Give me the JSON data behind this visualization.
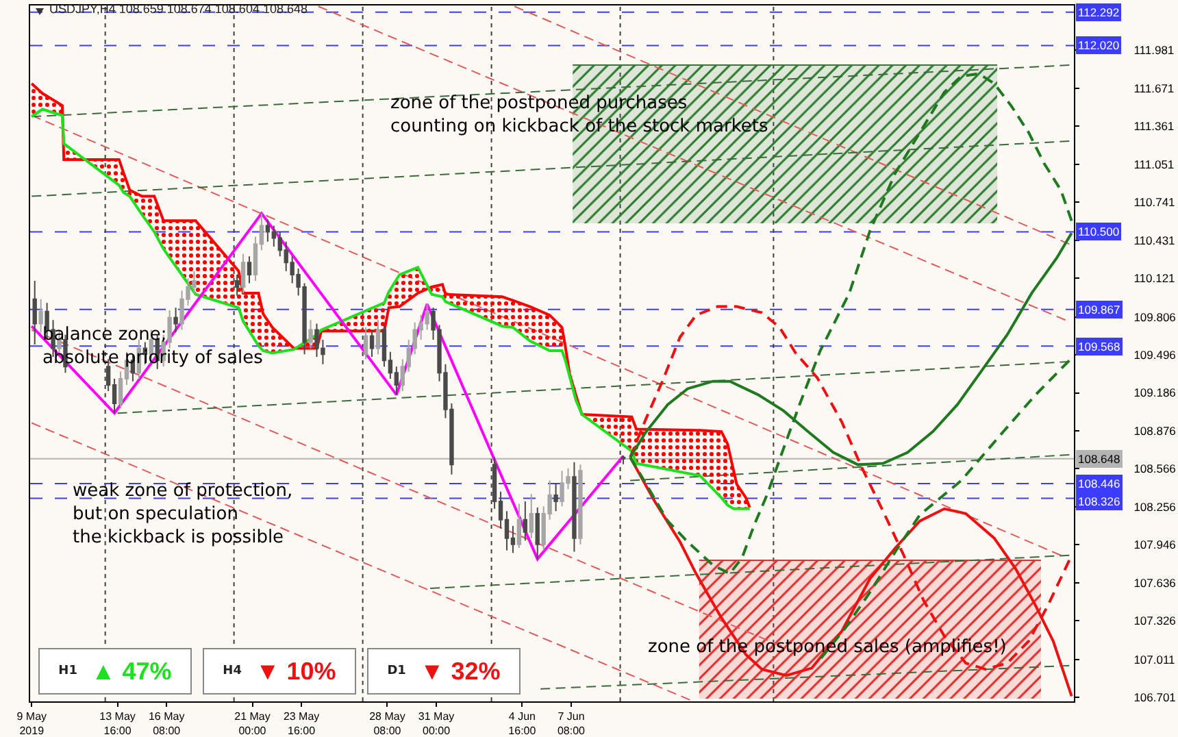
{
  "chart_data": [
    {
      "type": "candlestick",
      "title": "USDJPY,H4 108.659 108.674 108.604 108.648",
      "x": [
        "2019-05-09T04:00",
        "2019-05-09T12:00",
        "2019-05-09T20:00",
        "2019-05-10T04:00",
        "2019-05-10T12:00",
        "2019-05-10T20:00",
        "2019-05-13T04:00",
        "2019-05-13T12:00",
        "2019-05-13T20:00",
        "2019-05-14T04:00",
        "2019-05-14T12:00",
        "2019-05-14T20:00",
        "2019-05-15T04:00",
        "2019-05-15T12:00",
        "2019-05-15T20:00",
        "2019-05-16T04:00",
        "2019-05-16T12:00",
        "2019-05-16T20:00",
        "2019-05-17T04:00",
        "2019-05-17T12:00",
        "2019-05-17T20:00",
        "2019-05-20T04:00",
        "2019-05-20T12:00",
        "2019-05-20T20:00",
        "2019-05-21T04:00",
        "2019-05-21T12:00",
        "2019-05-21T20:00",
        "2019-05-22T04:00",
        "2019-05-22T12:00",
        "2019-05-22T20:00",
        "2019-05-23T04:00",
        "2019-05-23T12:00",
        "2019-05-23T20:00",
        "2019-05-24T04:00",
        "2019-05-24T12:00",
        "2019-05-24T20:00",
        "2019-05-27T04:00",
        "2019-05-27T12:00",
        "2019-05-27T20:00",
        "2019-05-28T04:00",
        "2019-05-28T12:00",
        "2019-05-28T20:00",
        "2019-05-29T04:00",
        "2019-05-29T12:00",
        "2019-05-29T20:00",
        "2019-05-30T04:00",
        "2019-05-30T12:00",
        "2019-05-30T20:00",
        "2019-05-31T04:00",
        "2019-05-31T12:00",
        "2019-05-31T20:00",
        "2019-06-03T04:00",
        "2019-06-03T12:00",
        "2019-06-03T20:00",
        "2019-06-04T04:00",
        "2019-06-04T12:00",
        "2019-06-04T20:00",
        "2019-06-05T04:00",
        "2019-06-05T12:00",
        "2019-06-05T20:00",
        "2019-06-06T04:00",
        "2019-06-06T12:00",
        "2019-06-06T20:00",
        "2019-06-07T04:00",
        "2019-06-07T12:00",
        "2019-06-07T20:00",
        "2019-06-10T04:00"
      ],
      "ohlc": [
        [
          109.95,
          110.1,
          109.58,
          109.75
        ],
        [
          109.75,
          109.95,
          109.68,
          109.85
        ],
        [
          109.85,
          109.92,
          109.62,
          109.7
        ],
        [
          109.7,
          109.78,
          109.48,
          109.55
        ],
        [
          109.55,
          109.7,
          109.5,
          109.62
        ],
        [
          109.62,
          109.66,
          109.35,
          109.4
        ],
        [
          109.4,
          109.46,
          109.2,
          109.25
        ],
        [
          109.25,
          109.3,
          109.02,
          109.1
        ],
        [
          109.1,
          109.36,
          109.06,
          109.3
        ],
        [
          109.3,
          109.52,
          109.25,
          109.45
        ],
        [
          109.45,
          109.5,
          109.28,
          109.35
        ],
        [
          109.35,
          109.62,
          109.3,
          109.55
        ],
        [
          109.55,
          109.6,
          109.42,
          109.5
        ],
        [
          109.5,
          109.7,
          109.46,
          109.62
        ],
        [
          109.62,
          109.66,
          109.38,
          109.45
        ],
        [
          109.45,
          109.66,
          109.4,
          109.6
        ],
        [
          109.6,
          109.86,
          109.55,
          109.8
        ],
        [
          109.8,
          109.88,
          109.68,
          109.75
        ],
        [
          109.75,
          110.02,
          109.7,
          109.95
        ],
        [
          109.95,
          110.12,
          109.9,
          110.05
        ],
        [
          110.05,
          110.18,
          110.0,
          110.1
        ],
        [
          110.1,
          110.15,
          109.98,
          110.05
        ],
        [
          110.05,
          110.32,
          110.0,
          110.25
        ],
        [
          110.25,
          110.3,
          110.08,
          110.15
        ],
        [
          110.15,
          110.46,
          110.1,
          110.4
        ],
        [
          110.4,
          110.65,
          110.35,
          110.55
        ],
        [
          110.55,
          110.6,
          110.42,
          110.5
        ],
        [
          110.5,
          110.55,
          110.38,
          110.45
        ],
        [
          110.45,
          110.5,
          110.3,
          110.35
        ],
        [
          110.35,
          110.42,
          110.18,
          110.25
        ],
        [
          110.25,
          110.3,
          110.08,
          110.15
        ],
        [
          110.15,
          110.2,
          109.98,
          110.05
        ],
        [
          110.05,
          110.08,
          109.5,
          109.6
        ],
        [
          109.6,
          109.78,
          109.55,
          109.7
        ],
        [
          109.7,
          109.75,
          109.48,
          109.55
        ],
        [
          109.55,
          109.62,
          109.42,
          109.5
        ],
        [
          109.5,
          109.72,
          109.46,
          109.65
        ],
        [
          109.65,
          109.7,
          109.48,
          109.55
        ],
        [
          109.55,
          109.78,
          109.5,
          109.7
        ],
        [
          109.7,
          109.74,
          109.4,
          109.45
        ],
        [
          109.45,
          109.52,
          109.3,
          109.35
        ],
        [
          109.35,
          109.4,
          109.17,
          109.25
        ],
        [
          109.25,
          109.46,
          109.2,
          109.4
        ],
        [
          109.4,
          109.62,
          109.36,
          109.55
        ],
        [
          109.55,
          109.76,
          109.5,
          109.7
        ],
        [
          109.7,
          109.82,
          109.62,
          109.75
        ],
        [
          109.75,
          109.91,
          109.7,
          109.85
        ],
        [
          109.85,
          109.88,
          109.62,
          109.7
        ],
        [
          109.7,
          109.74,
          109.28,
          109.35
        ],
        [
          109.35,
          109.42,
          108.98,
          109.05
        ],
        [
          109.05,
          109.1,
          108.52,
          108.6
        ],
        [
          108.6,
          108.66,
          108.24,
          108.3
        ],
        [
          108.3,
          108.38,
          108.08,
          108.15
        ],
        [
          108.15,
          108.22,
          107.9,
          108.0
        ],
        [
          108.0,
          108.1,
          107.88,
          107.95
        ],
        [
          107.95,
          108.28,
          107.92,
          108.15
        ],
        [
          108.15,
          108.3,
          107.98,
          108.05
        ],
        [
          108.05,
          108.36,
          108.0,
          108.2
        ],
        [
          108.2,
          108.25,
          107.83,
          107.95
        ],
        [
          107.95,
          108.26,
          107.9,
          108.2
        ],
        [
          108.2,
          108.47,
          108.15,
          108.35
        ],
        [
          108.35,
          108.45,
          108.22,
          108.3
        ],
        [
          108.3,
          108.55,
          108.26,
          108.45
        ],
        [
          108.45,
          108.57,
          108.4,
          108.5
        ],
        [
          108.5,
          108.62,
          107.89,
          108.0
        ],
        [
          108.0,
          108.6,
          107.95,
          108.55
        ],
        [
          108.659,
          108.674,
          108.604,
          108.648
        ]
      ],
      "colors": [
        "#4a4a4a",
        "#a6a6a6",
        "#4a4a4a",
        "#4a4a4a",
        "#a6a6a6",
        "#4a4a4a",
        "#4a4a4a",
        "#4a4a4a",
        "#a6a6a6",
        "#a6a6a6",
        "#4a4a4a",
        "#a6a6a6",
        "#4a4a4a",
        "#a6a6a6",
        "#4a4a4a",
        "#a6a6a6",
        "#a6a6a6",
        "#4a4a4a",
        "#a6a6a6",
        "#a6a6a6",
        "#a6a6a6",
        "#4a4a4a",
        "#a6a6a6",
        "#4a4a4a",
        "#a6a6a6",
        "#a6a6a6",
        "#4a4a4a",
        "#4a4a4a",
        "#4a4a4a",
        "#4a4a4a",
        "#4a4a4a",
        "#4a4a4a",
        "#4a4a4a",
        "#a6a6a6",
        "#4a4a4a",
        "#4a4a4a",
        "#a6a6a6",
        "#4a4a4a",
        "#a6a6a6",
        "#4a4a4a",
        "#4a4a4a",
        "#4a4a4a",
        "#a6a6a6",
        "#a6a6a6",
        "#a6a6a6",
        "#a6a6a6",
        "#a6a6a6",
        "#4a4a4a",
        "#4a4a4a",
        "#4a4a4a",
        "#4a4a4a",
        "#4a4a4a",
        "#4a4a4a",
        "#4a4a4a",
        "#4a4a4a",
        "#a6a6a6",
        "#4a4a4a",
        "#a6a6a6",
        "#4a4a4a",
        "#a6a6a6",
        "#a6a6a6",
        "#4a4a4a",
        "#a6a6a6",
        "#a6a6a6",
        "#4a4a4a",
        "#a6a6a6",
        "#4a4a4a"
      ],
      "series": [
        {
          "type": "line",
          "x": [
            "2019-06-07T10:00",
            "2019-06-30T12:00"
          ],
          "values": [
            111.86,
            111.86
          ],
          "lower": [
            110.57,
            110.57
          ],
          "upper": [
            111.86,
            111.86
          ],
          "color": "#2e7d32"
        },
        {
          "type": "line",
          "x": [
            "2019-06-14T07:00",
            "2019-07-02T21:00"
          ],
          "values": [
            107.82,
            107.82
          ],
          "lower": [
            106.69,
            106.69
          ],
          "upper": [
            107.82,
            107.82
          ],
          "color": "#e03030"
        },
        {
          "type": "line",
          "x": [
            "2019-05-24T14:00",
            "2019-07-04T05:00"
          ],
          "values": [
            112.34,
            109.78
          ],
          "color": "#e05a5a",
          "line_style": "dashed"
        },
        {
          "type": "line",
          "x": [
            "2019-06-04T06:00",
            "2019-07-04T10:00"
          ],
          "values": [
            112.34,
            110.4
          ],
          "color": "#e05a5a",
          "line_style": "dashed"
        },
        {
          "type": "line",
          "x": [
            "2019-05-09T00:00",
            "2019-07-03T23:00"
          ],
          "values": [
            111.45,
            107.86
          ],
          "color": "#e05a5a",
          "line_style": "dashed"
        },
        {
          "type": "line",
          "x": [
            "2019-05-09T00:00",
            "2019-06-19T13:00"
          ],
          "values": [
            109.7,
            107.07
          ],
          "color": "#e05a5a",
          "line_style": "dashed"
        },
        {
          "type": "line",
          "x": [
            "2019-05-09T00:00",
            "2019-06-13T19:00"
          ],
          "values": [
            108.94,
            106.68
          ],
          "color": "#e05a5a",
          "line_style": "dashed"
        },
        {
          "type": "line",
          "x": [
            "2019-05-09T00:00",
            "2019-07-04T10:00"
          ],
          "values": [
            111.44,
            111.86
          ],
          "color": "#3a6b3a",
          "line_style": "dashed"
        },
        {
          "type": "line",
          "x": [
            "2019-05-09T00:00",
            "2019-07-04T10:00"
          ],
          "values": [
            110.79,
            111.24
          ],
          "color": "#3a6b3a",
          "line_style": "dashed"
        },
        {
          "type": "line",
          "x": [
            "2019-05-13T16:00",
            "2019-07-04T10:00"
          ],
          "values": [
            109.02,
            109.44
          ],
          "color": "#3a6b3a",
          "line_style": "dashed"
        },
        {
          "type": "line",
          "x": [
            "2019-05-30T16:00",
            "2019-07-04T10:00"
          ],
          "values": [
            107.59,
            107.86
          ],
          "color": "#3a6b3a",
          "line_style": "dashed"
        },
        {
          "type": "line",
          "x": [
            "2019-06-05T16:00",
            "2019-07-04T10:00"
          ],
          "values": [
            106.77,
            106.96
          ],
          "color": "#3a6b3a",
          "line_style": "dashed"
        },
        {
          "type": "line",
          "x": [
            "2019-06-10T13:00",
            "2019-07-04T10:00"
          ],
          "values": [
            108.47,
            108.68
          ],
          "color": "#3a6b3a",
          "line_style": "dashed"
        },
        {
          "type": "line",
          "x": [
            "2019-05-09T00:00",
            "2019-05-09T14:00",
            "2019-05-10T16:00",
            "2019-05-10T18:00",
            "2019-05-13T18:00",
            "2019-05-14T00:00",
            "2019-05-14T08:00",
            "2019-05-15T00:00",
            "2019-05-15T16:00",
            "2019-05-16T04:00",
            "2019-05-17T22:00",
            "2019-05-20T06:00",
            "2019-05-20T12:00",
            "2019-05-21T08:00",
            "2019-05-21T14:00",
            "2019-05-22T02:00",
            "2019-05-23T06:00",
            "2019-05-24T12:00",
            "2019-05-24T18:00",
            "2019-05-28T04:00",
            "2019-05-28T10:00",
            "2019-05-29T00:00",
            "2019-05-30T00:00",
            "2019-05-30T18:00",
            "2019-05-31T08:00",
            "2019-05-31T12:00",
            "2019-06-03T14:00",
            "2019-06-04T04:00",
            "2019-06-05T02:00",
            "2019-06-06T04:00",
            "2019-06-06T20:00",
            "2019-06-07T00:00",
            "2019-06-07T06:00",
            "2019-06-07T14:00",
            "2019-06-07T22:00",
            "2019-06-10T15:00",
            "2019-06-10T21:00",
            "2019-06-14T08:00",
            "2019-06-15T12:00",
            "2019-06-15T20:00",
            "2019-06-16T04:00",
            "2019-06-16T08:00",
            "2019-06-16T20:00",
            "2019-06-17T01:00"
          ],
          "values": [
            111.71,
            111.63,
            111.53,
            111.09,
            111.09,
            110.98,
            110.84,
            110.79,
            110.79,
            110.59,
            110.59,
            110.18,
            110.0,
            110.0,
            109.83,
            109.72,
            109.55,
            109.55,
            109.69,
            109.69,
            109.88,
            109.89,
            110.0,
            110.05,
            110.07,
            109.99,
            109.97,
            109.94,
            109.89,
            109.82,
            109.72,
            109.58,
            109.34,
            109.17,
            109.01,
            108.99,
            108.89,
            108.88,
            108.87,
            108.77,
            108.55,
            108.44,
            108.33,
            108.25
          ],
          "lower": [
            111.44,
            111.5,
            111.45,
            111.22,
            110.88,
            110.82,
            110.79,
            110.64,
            110.5,
            110.36,
            109.99,
            109.88,
            109.77,
            109.57,
            109.53,
            109.51,
            109.54,
            109.66,
            109.7,
            109.92,
            110.01,
            110.15,
            110.21,
            109.99,
            109.97,
            109.93,
            109.73,
            109.72,
            109.61,
            109.53,
            109.53,
            109.46,
            109.32,
            109.13,
            109.01,
            108.71,
            108.61,
            108.51,
            108.33,
            108.27,
            108.24,
            108.24,
            108.24,
            108.24
          ],
          "upper": [
            111.71,
            111.63,
            111.53,
            111.09,
            111.09,
            110.98,
            110.84,
            110.79,
            110.79,
            110.59,
            110.59,
            110.18,
            110.0,
            110.0,
            109.83,
            109.72,
            109.55,
            109.55,
            109.69,
            109.69,
            109.88,
            109.89,
            110.0,
            110.05,
            110.07,
            109.99,
            109.97,
            109.94,
            109.89,
            109.82,
            109.72,
            109.58,
            109.34,
            109.17,
            109.01,
            108.99,
            108.89,
            108.88,
            108.87,
            108.77,
            108.55,
            108.44,
            108.33,
            108.25
          ],
          "color": "#ff0000",
          "line_style": "solid"
        },
        {
          "type": "line",
          "x": [
            "2019-05-09T00:00",
            "2019-05-09T14:00",
            "2019-05-10T16:00",
            "2019-05-10T18:00",
            "2019-05-13T18:00",
            "2019-05-14T00:00",
            "2019-05-14T08:00",
            "2019-05-15T00:00",
            "2019-05-15T16:00",
            "2019-05-16T04:00",
            "2019-05-17T22:00",
            "2019-05-20T06:00",
            "2019-05-20T12:00",
            "2019-05-21T08:00",
            "2019-05-21T14:00",
            "2019-05-22T02:00",
            "2019-05-23T06:00",
            "2019-05-24T12:00",
            "2019-05-24T18:00",
            "2019-05-28T04:00",
            "2019-05-28T10:00",
            "2019-05-29T00:00",
            "2019-05-30T00:00",
            "2019-05-30T18:00",
            "2019-05-31T08:00",
            "2019-05-31T12:00",
            "2019-06-03T14:00",
            "2019-06-04T04:00",
            "2019-06-05T02:00",
            "2019-06-06T04:00",
            "2019-06-06T20:00",
            "2019-06-07T00:00",
            "2019-06-07T06:00",
            "2019-06-07T14:00",
            "2019-06-07T22:00",
            "2019-06-10T15:00",
            "2019-06-10T21:00",
            "2019-06-14T08:00",
            "2019-06-15T12:00",
            "2019-06-15T20:00",
            "2019-06-16T04:00",
            "2019-06-16T08:00",
            "2019-06-16T20:00",
            "2019-06-17T01:00"
          ],
          "values": [
            111.44,
            111.5,
            111.45,
            111.22,
            110.88,
            110.82,
            110.79,
            110.64,
            110.5,
            110.36,
            109.99,
            109.88,
            109.77,
            109.57,
            109.53,
            109.51,
            109.54,
            109.66,
            109.7,
            109.92,
            110.01,
            110.15,
            110.21,
            109.99,
            109.97,
            109.93,
            109.73,
            109.72,
            109.61,
            109.53,
            109.53,
            109.46,
            109.32,
            109.13,
            109.01,
            108.71,
            108.61,
            108.51,
            108.33,
            108.27,
            108.24,
            108.24,
            108.24,
            108.24
          ],
          "color": "#1fe01f",
          "line_style": "solid"
        },
        {
          "type": "line",
          "x": [
            "2019-05-09T00:00",
            "2019-05-13T12:00",
            "2019-05-21T12:00",
            "2019-05-28T20:00",
            "2019-05-30T12:00",
            "2019-06-05T12:00",
            "2019-06-10T04:00"
          ],
          "values": [
            109.73,
            109.02,
            110.65,
            109.17,
            109.91,
            107.83,
            108.67
          ],
          "color": "#ff00ff",
          "line_style": "solid"
        },
        {
          "type": "line",
          "x": [
            "2019-06-10T13:00",
            "2019-06-11T21:00",
            "2019-06-13T06:00",
            "2019-06-14T03:00",
            "2019-06-15T12:00",
            "2019-06-16T20:00",
            "2019-06-17T17:00",
            "2019-06-19T01:00",
            "2019-06-20T10:00",
            "2019-06-22T01:00",
            "2019-06-23T14:00",
            "2019-06-24T23:00",
            "2019-06-26T07:00",
            "2019-06-27T15:00",
            "2019-06-28T19:00",
            "2019-06-30T08:00",
            "2019-07-01T12:00",
            "2019-07-02T14:00",
            "2019-07-03T13:00",
            "2019-07-04T13:00"
          ],
          "values": [
            108.66,
            108.3,
            107.97,
            107.71,
            107.35,
            107.05,
            106.93,
            106.88,
            106.94,
            107.24,
            107.67,
            107.92,
            108.14,
            108.24,
            108.2,
            108.0,
            107.75,
            107.45,
            107.16,
            106.71
          ],
          "color": "#ee1111",
          "line_style": "solid"
        },
        {
          "type": "line",
          "x": [
            "2019-06-10T13:00",
            "2019-06-11T10:00",
            "2019-06-12T07:00",
            "2019-06-13T06:00",
            "2019-06-14T03:00",
            "2019-06-15T07:00",
            "2019-06-16T08:00",
            "2019-06-17T17:00",
            "2019-06-18T16:00",
            "2019-06-19T13:00",
            "2019-06-20T17:00",
            "2019-06-22T01:00",
            "2019-06-23T03:00",
            "2019-06-24T07:00",
            "2019-06-25T10:00",
            "2019-06-26T12:00",
            "2019-06-27T15:00",
            "2019-06-28T19:00",
            "2019-06-29T21:00",
            "2019-07-01T01:00",
            "2019-07-02T05:00",
            "2019-07-03T06:00",
            "2019-07-04T10:00"
          ],
          "values": [
            108.66,
            108.98,
            109.28,
            109.64,
            109.82,
            109.89,
            109.89,
            109.84,
            109.72,
            109.51,
            109.31,
            108.95,
            108.58,
            108.22,
            107.86,
            107.49,
            107.2,
            106.98,
            106.93,
            106.98,
            107.16,
            107.45,
            107.82
          ],
          "color": "#ee1111",
          "line_style": "dashed"
        },
        {
          "type": "line",
          "x": [
            "2019-06-10T13:00",
            "2019-06-11T10:00",
            "2019-06-12T14:00",
            "2019-06-13T16:00",
            "2019-06-15T01:00",
            "2019-06-15T23:00",
            "2019-06-17T12:00",
            "2019-06-18T21:00",
            "2019-06-20T05:00",
            "2019-06-21T14:00",
            "2019-06-22T22:00",
            "2019-06-24T07:00",
            "2019-06-25T15:00",
            "2019-06-27T00:00",
            "2019-06-28T08:00",
            "2019-06-29T16:00",
            "2019-07-01T01:00",
            "2019-07-02T09:00",
            "2019-07-03T18:00",
            "2019-07-04T13:00"
          ],
          "values": [
            108.66,
            108.87,
            109.09,
            109.22,
            109.28,
            109.28,
            109.17,
            109.04,
            108.87,
            108.7,
            108.6,
            108.61,
            108.7,
            108.87,
            109.09,
            109.37,
            109.66,
            110.0,
            110.29,
            110.49
          ],
          "color": "#1f7a1f",
          "line_style": "solid"
        },
        {
          "type": "line",
          "x": [
            "2019-06-10T13:00",
            "2019-06-11T10:00",
            "2019-06-12T14:00",
            "2019-06-13T16:00",
            "2019-06-15T01:00",
            "2019-06-15T23:00",
            "2019-06-16T15:00",
            "2019-06-17T07:00",
            "2019-06-18T00:00",
            "2019-06-18T21:00",
            "2019-06-19T18:00",
            "2019-06-20T21:00",
            "2019-06-22T11:00",
            "2019-06-23T14:00",
            "2019-06-24T23:00",
            "2019-06-26T07:00",
            "2019-06-27T15:00",
            "2019-06-28T13:00",
            "2019-06-29T12:00",
            "2019-06-30T08:00",
            "2019-07-01T06:00",
            "2019-07-02T05:00",
            "2019-07-03T01:00",
            "2019-07-03T23:00",
            "2019-07-04T13:00"
          ],
          "values": [
            108.66,
            108.44,
            108.14,
            107.97,
            107.78,
            107.71,
            107.84,
            108.11,
            108.36,
            108.73,
            109.09,
            109.53,
            110.0,
            110.51,
            110.98,
            111.31,
            111.64,
            111.77,
            111.79,
            111.71,
            111.53,
            111.31,
            111.06,
            110.84,
            110.59
          ],
          "color": "#1f7a1f",
          "line_style": "dashed"
        },
        {
          "type": "line",
          "x": [
            "2019-06-20T22:00",
            "2019-06-22T06:00",
            "2019-06-23T14:00",
            "2019-06-24T23:00",
            "2019-06-26T07:00",
            "2019-06-28T13:00",
            "2019-06-30T20:00",
            "2019-07-02T14:00",
            "2019-07-04T10:00"
          ],
          "values": [
            107.02,
            107.27,
            107.56,
            107.89,
            108.19,
            108.47,
            108.87,
            109.17,
            109.45
          ],
          "color": "#1f7a1f",
          "line_style": "dashed"
        }
      ],
      "xlim": [
        "2019-05-08T22:00",
        "2019-07-04T16:00"
      ],
      "xticks": [
        {
          "value": "2019-05-09T00:00",
          "label": "9 May 2019"
        },
        {
          "value": "2019-05-13T16:00",
          "label": "13 May 16:00"
        },
        {
          "value": "2019-05-16T08:00",
          "label": "16 May 08:00"
        },
        {
          "value": "2019-05-21T00:00",
          "label": "21 May 00:00"
        },
        {
          "value": "2019-05-23T16:00",
          "label": "23 May 16:00"
        },
        {
          "value": "2019-05-28T08:00",
          "label": "28 May 08:00"
        },
        {
          "value": "2019-05-31T00:00",
          "label": "31 May 00:00"
        },
        {
          "value": "2019-06-04T16:00",
          "label": "4 Jun 16:00"
        },
        {
          "value": "2019-06-07T08:00",
          "label": "7 Jun 08:00"
        }
      ],
      "ylim": [
        106.668,
        112.347
      ],
      "yticks": [
        106.701,
        107.011,
        107.326,
        107.636,
        107.946,
        108.256,
        108.566,
        108.876,
        109.186,
        109.496,
        109.806,
        110.121,
        110.431,
        110.741,
        111.051,
        111.361,
        111.671,
        111.981
      ],
      "ref_lines": [
        {
          "axis": "y",
          "value": 112.292,
          "label": "112.292",
          "color": "#3c3cff",
          "line_style": "dashed"
        },
        {
          "axis": "y",
          "value": 112.02,
          "label": "112.020",
          "color": "#3c3cff",
          "line_style": "dashed"
        },
        {
          "axis": "y",
          "value": 110.5,
          "label": "110.500",
          "color": "#3c3cff",
          "line_style": "dashed"
        },
        {
          "axis": "y",
          "value": 109.867,
          "label": "109.867",
          "color": "#3c3cff",
          "line_style": "dashed"
        },
        {
          "axis": "y",
          "value": 109.568,
          "label": "109.568",
          "color": "#3c3cff",
          "line_style": "dashed"
        },
        {
          "axis": "y",
          "value": 108.446,
          "label": "108.446",
          "color": "#3c3cff",
          "line_style": "dashed"
        },
        {
          "axis": "y",
          "value": 108.326,
          "label": "108.326",
          "color": "#3c3cff",
          "line_style": "dashed"
        },
        {
          "axis": "y",
          "value": 108.648,
          "label": "108.648",
          "color": "#b4b4b4",
          "line_style": "solid"
        },
        {
          "axis": "x",
          "value": "2019-05-13T00:00",
          "color": "#404040",
          "line_style": "dotted"
        },
        {
          "axis": "x",
          "value": "2019-05-20T00:00",
          "color": "#404040",
          "line_style": "dotted"
        },
        {
          "axis": "x",
          "value": "2019-05-27T00:00",
          "color": "#404040",
          "line_style": "dotted"
        },
        {
          "axis": "x",
          "value": "2019-06-03T00:00",
          "color": "#404040",
          "line_style": "dotted"
        },
        {
          "axis": "x",
          "value": "2019-06-10T00:00",
          "color": "#404040",
          "line_style": "dotted"
        },
        {
          "axis": "x",
          "value": "2019-06-18T08:00",
          "color": "#404040",
          "line_style": "dotted"
        }
      ],
      "annotations": [
        "zone of the postponed purchases\ncounting on kickback of the stock markets",
        "balance zone;\nabsolute priority of sales",
        "weak zone of protection,\nbut on speculation\nthe kickback is possible",
        "zone of the postponed sales (amplifies!)"
      ]
    },
    {
      "type": "other",
      "categories": [
        "H1",
        "H4",
        "D1"
      ],
      "value_labels": [
        "▲ 47%",
        "▼ 10%",
        "▼ 32%"
      ],
      "colors": [
        "#1ee01e",
        "#ee1111",
        "#ee1111"
      ]
    }
  ]
}
